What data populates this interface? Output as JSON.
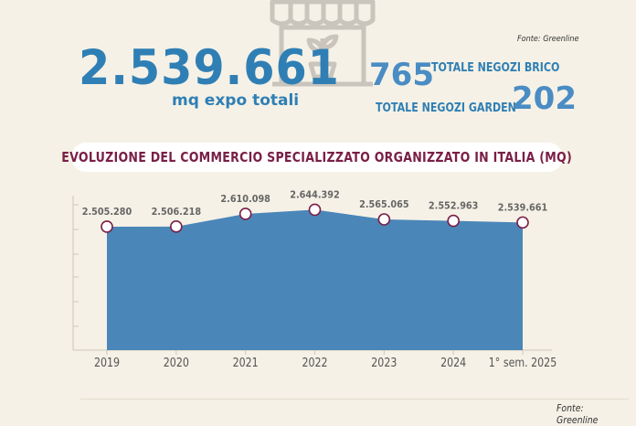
{
  "header": {
    "big_total": "2.539.661",
    "big_total_label": "mq expo totali",
    "source_top": "Fonte: Greenline",
    "brico_value": "765",
    "brico_label": "TOTALE NEGOZI BRICO",
    "garden_value": "202",
    "garden_label": "TOTALE  NEGOZI GARDEN"
  },
  "chart_data": {
    "type": "area",
    "title": "EVOLUZIONE DEL COMMERCIO SPECIALIZZATO ORGANIZZATO IN ITALIA (MQ)",
    "categories": [
      "2019",
      "2020",
      "2021",
      "2022",
      "2023",
      "2024",
      "1° sem. 2025"
    ],
    "values": [
      2505280,
      2506218,
      2610098,
      2644392,
      2565065,
      2552963,
      2539661
    ],
    "data_labels": [
      "2.505.280",
      "2.506.218",
      "2.610.098",
      "2.644.392",
      "2.565.065",
      "2.552.963",
      "2.539.661"
    ],
    "xlabel": "",
    "ylabel": "",
    "grid": false,
    "fill_color": "#4a86b8",
    "marker_color": "#7a1f46"
  },
  "footer": {
    "source": "Fonte: Greenline"
  }
}
